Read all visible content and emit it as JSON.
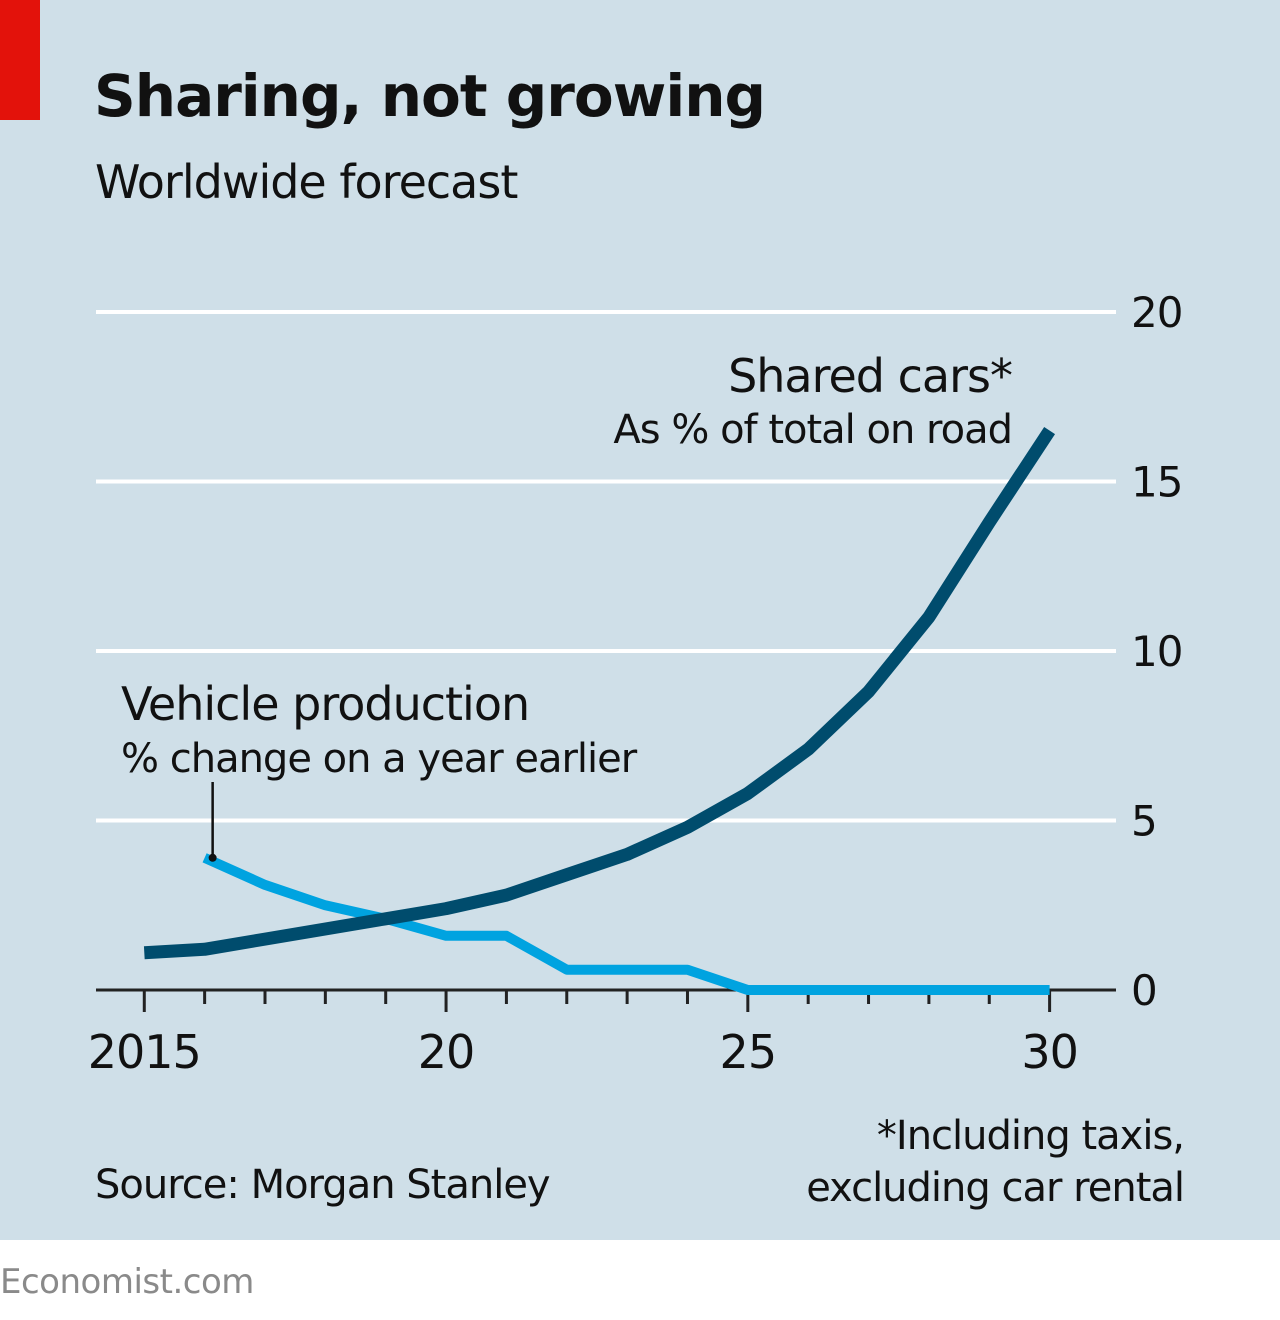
{
  "title": "Sharing, not growing",
  "subtitle": "Worldwide forecast",
  "source": "Source: Morgan Stanley",
  "footnote": [
    "*Including taxis,",
    "excluding car rental"
  ],
  "branding": "Economist.com",
  "colors": {
    "background": "#cfdfe8",
    "accent_red": "#e3120b",
    "shared_cars": "#004c6d",
    "vehicle_production": "#00a3e0",
    "gridline": "#ffffff",
    "text": "#111111"
  },
  "chart_data": {
    "type": "line",
    "x": [
      2015,
      2016,
      2017,
      2018,
      2019,
      2020,
      2021,
      2022,
      2023,
      2024,
      2025,
      2026,
      2027,
      2028,
      2029,
      2030
    ],
    "x_ticks": [
      {
        "value": 2015,
        "label": "2015"
      },
      {
        "value": 2020,
        "label": "20"
      },
      {
        "value": 2025,
        "label": "25"
      },
      {
        "value": 2030,
        "label": "30"
      }
    ],
    "xlim": [
      2014.2,
      2031.1
    ],
    "ylim": [
      0,
      20
    ],
    "y_ticks": [
      0,
      5,
      10,
      15,
      20
    ],
    "y_axis_side": "right",
    "grid": true,
    "series": [
      {
        "name": "Shared cars*",
        "sublabel": "As % of total on road",
        "color": "#004c6d",
        "x": [
          2015,
          2016,
          2017,
          2018,
          2019,
          2020,
          2021,
          2022,
          2023,
          2024,
          2025,
          2026,
          2027,
          2028,
          2029,
          2030
        ],
        "values": [
          1.1,
          1.2,
          1.5,
          1.8,
          2.1,
          2.4,
          2.8,
          3.4,
          4.0,
          4.8,
          5.8,
          7.1,
          8.8,
          11.0,
          13.8,
          16.5
        ]
      },
      {
        "name": "Vehicle production",
        "sublabel": "% change on a year earlier",
        "color": "#00a3e0",
        "x": [
          2016,
          2017,
          2018,
          2019,
          2020,
          2021,
          2022,
          2023,
          2024,
          2025,
          2026,
          2027,
          2028,
          2029,
          2030
        ],
        "values": [
          3.9,
          3.1,
          2.5,
          2.1,
          1.6,
          1.6,
          0.6,
          0.6,
          0.6,
          0.0,
          0.0,
          0.0,
          0.0,
          0.0,
          0.0
        ]
      }
    ]
  }
}
